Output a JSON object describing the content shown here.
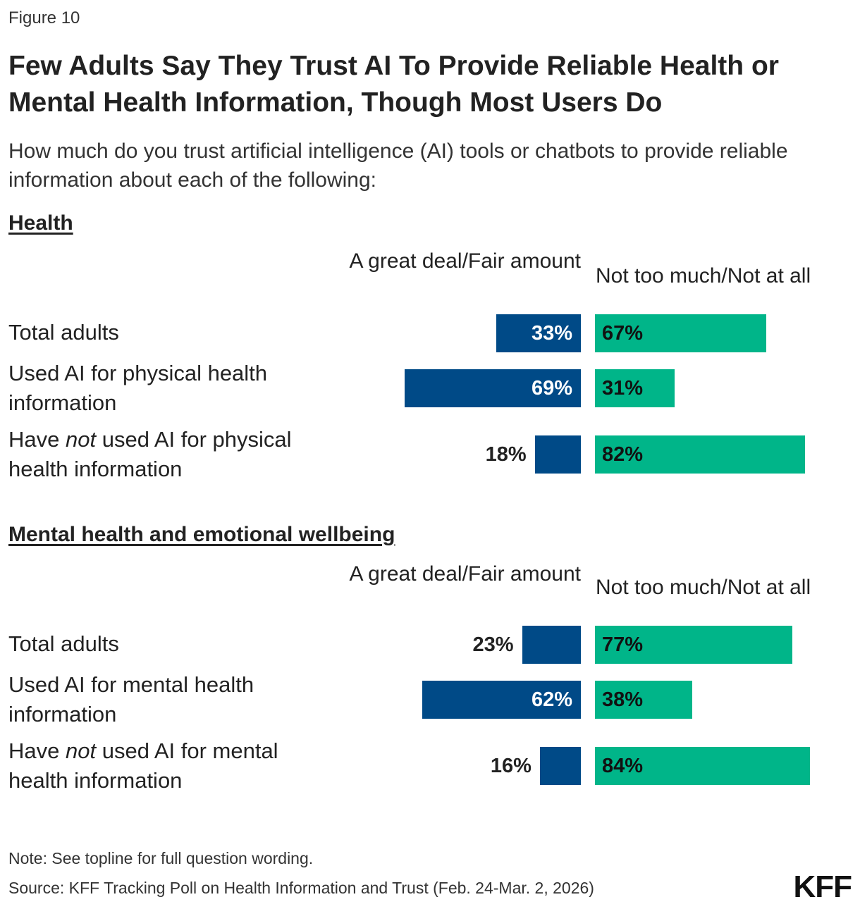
{
  "figure_label": "Figure 10",
  "logo_text": "KFF",
  "note": "Note: See topline for full question wording.",
  "source": "Source: KFF Tracking Poll on Health Information and Trust (Feb. 24-Mar. 2, 2026)",
  "colors": {
    "positive": "#004a87",
    "negative": "#00b589"
  },
  "chart_data": {
    "type": "bar",
    "orientation": "horizontal-diverging",
    "title": "Few Adults Say They Trust AI To Provide Reliable Health or Mental Health Information, Though Most Users Do",
    "subtitle": "How much do you trust artificial intelligence (AI) tools or chatbots to provide reliable information about each of the following:",
    "series_names": [
      "A great deal/Fair amount",
      "Not too much/Not at all"
    ],
    "panels": [
      {
        "heading": "Health",
        "rows": [
          {
            "label": "Total adults",
            "values": [
              33,
              67
            ]
          },
          {
            "label_pre": "Used AI for physical health information",
            "label_em": "",
            "label_post": "",
            "values": [
              69,
              31
            ]
          },
          {
            "label_pre": "Have ",
            "label_em": "not",
            "label_post": " used AI for physical health information",
            "values": [
              18,
              82
            ]
          }
        ]
      },
      {
        "heading": "Mental health and emotional wellbeing",
        "rows": [
          {
            "label": "Total adults",
            "values": [
              23,
              77
            ]
          },
          {
            "label_pre": "Used AI for mental health information",
            "label_em": "",
            "label_post": "",
            "values": [
              62,
              38
            ]
          },
          {
            "label_pre": "Have ",
            "label_em": "not",
            "label_post": " used AI for mental health information",
            "values": [
              16,
              84
            ]
          }
        ]
      }
    ],
    "value_format": "{v}%"
  }
}
